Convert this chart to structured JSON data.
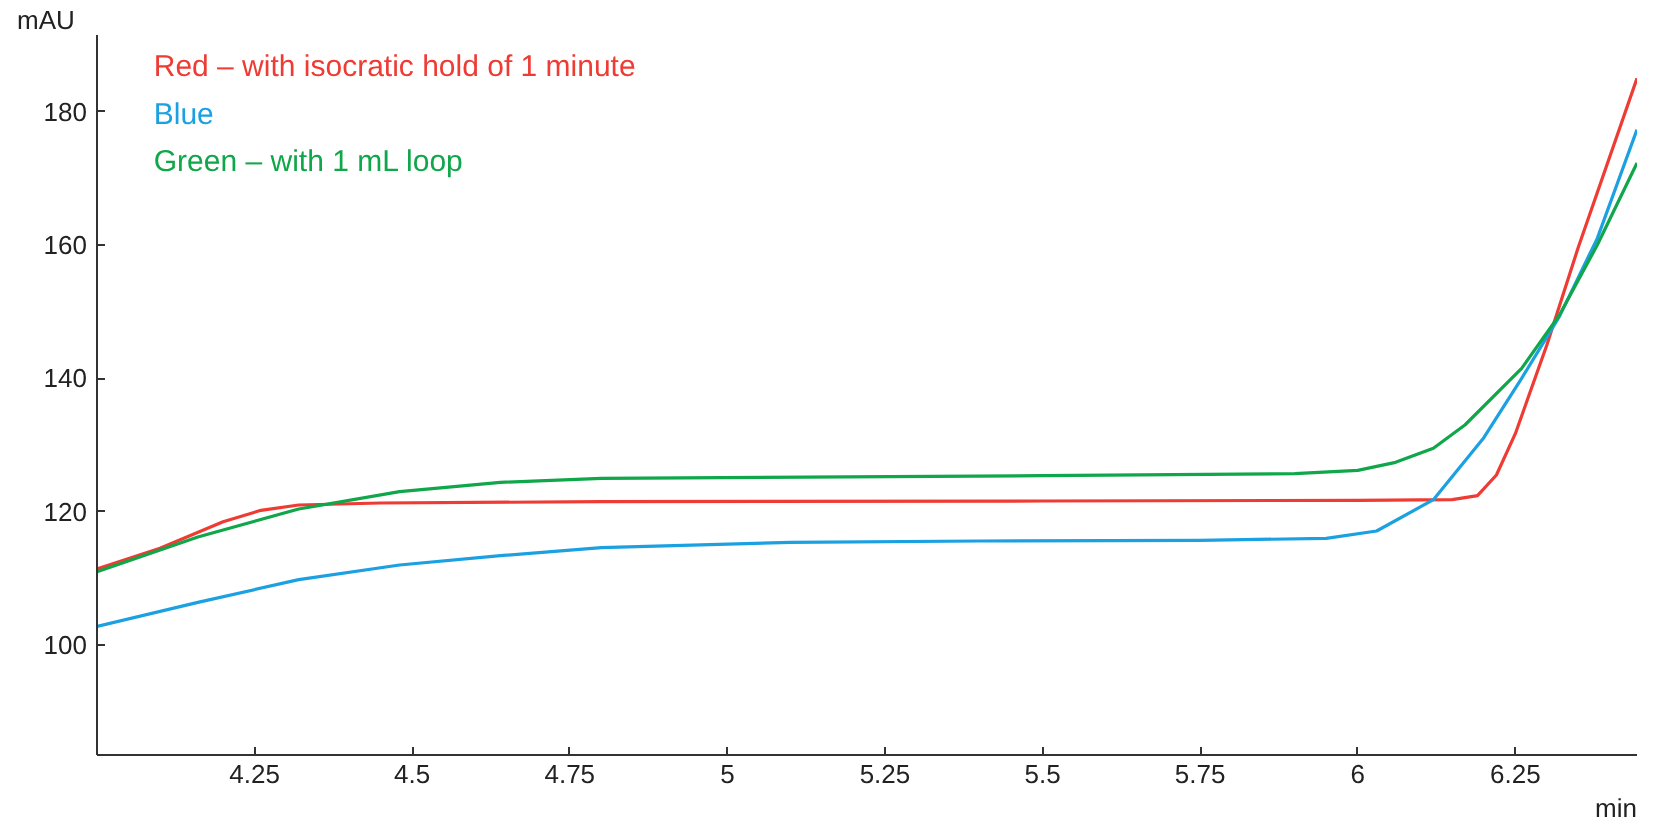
{
  "chart_data": {
    "type": "line",
    "xlabel": "min",
    "ylabel": "mAU",
    "xlim": [
      4.0,
      6.443
    ],
    "ylim": [
      83.5,
      191.5
    ],
    "xticks": [
      4.25,
      4.5,
      4.75,
      5,
      5.25,
      5.5,
      5.75,
      6,
      6.25
    ],
    "yticks": [
      100,
      120,
      140,
      160,
      180
    ],
    "grid": false,
    "legend": "top left",
    "marker": "none",
    "line_style": "solid",
    "series": [
      {
        "name": "Red – with isocratic hold of 1 minute",
        "color": "#ee3b33",
        "x": [
          4.0,
          4.1,
          4.2,
          4.26,
          4.32,
          4.45,
          4.8,
          5.5,
          6.0,
          6.15,
          6.19,
          6.22,
          6.25,
          6.3,
          6.35,
          6.443
        ],
        "values": [
          111.4,
          114.5,
          118.5,
          120.2,
          121,
          121.3,
          121.5,
          121.6,
          121.7,
          121.8,
          122.4,
          125.5,
          131.7,
          145,
          159.7,
          185
        ]
      },
      {
        "name": "Blue",
        "color": "#1ba1e2",
        "x": [
          4.0,
          4.16,
          4.32,
          4.48,
          4.64,
          4.8,
          5.1,
          5.4,
          5.75,
          5.95,
          6.03,
          6.12,
          6.2,
          6.26,
          6.32,
          6.38,
          6.443
        ],
        "values": [
          102.8,
          106.4,
          109.8,
          112,
          113.4,
          114.6,
          115.4,
          115.6,
          115.7,
          116,
          117.1,
          121.8,
          131.1,
          140,
          149.3,
          161,
          177.3
        ]
      },
      {
        "name": "Green – with 1 mL loop",
        "color": "#10a64a",
        "x": [
          4.0,
          4.16,
          4.32,
          4.48,
          4.64,
          4.8,
          5.5,
          5.9,
          6.0,
          6.06,
          6.12,
          6.17,
          6.26,
          6.32,
          6.38,
          6.443
        ],
        "values": [
          111,
          116.2,
          120.4,
          123,
          124.4,
          125,
          125.4,
          125.7,
          126.2,
          127.4,
          129.5,
          133,
          141.5,
          149.5,
          160,
          172.3
        ]
      }
    ]
  }
}
